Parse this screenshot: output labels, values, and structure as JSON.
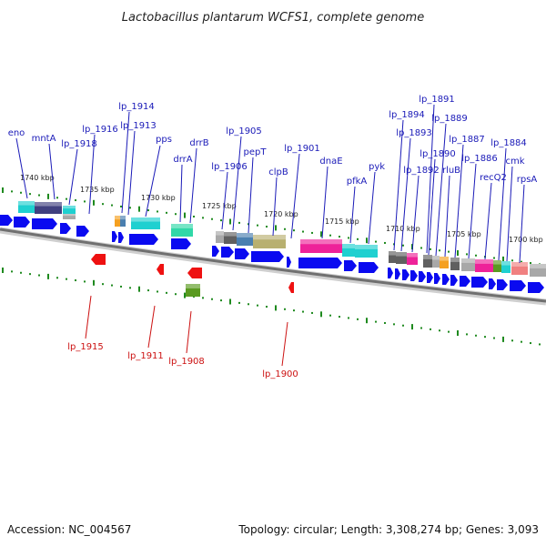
{
  "title": "Lactobacillus plantarum WCFS1, complete genome",
  "footer": {
    "accession": "Accession: NC_004567",
    "summary": "Topology: circular; Length: 3,308,274 bp; Genes: 3,093"
  },
  "scale_ticks": [
    "1740 kbp",
    "1735 kbp",
    "1730 kbp",
    "1725 kbp",
    "1720 kbp",
    "1715 kbp",
    "1710 kbp",
    "1705 kbp",
    "1700 kbp"
  ],
  "forward_labels": [
    "eno",
    "mntA",
    "lp_1918",
    "lp_1916",
    "lp_1914",
    "lp_1913",
    "pps",
    "drrA",
    "drrB",
    "lp_1906",
    "lp_1905",
    "pepT",
    "clpB",
    "lp_1901",
    "dnaE",
    "pfkA",
    "pyk",
    "lp_1894",
    "lp_1893",
    "lp_1892",
    "lp_1891",
    "lp_1890",
    "lp_1889",
    "rluB",
    "lp_1887",
    "lp_1886",
    "recQ2",
    "lp_1884",
    "cmk",
    "rpsA"
  ],
  "reverse_labels": [
    "lp_1915",
    "lp_1911",
    "lp_1908",
    "lp_1900"
  ],
  "colors": {
    "forward_arrow": "#0a0af0",
    "reverse_arrow": "#ee1111",
    "forward_label": "#1a1ab8",
    "reverse_label": "#cc1111",
    "tick_green": "#1f8a1f",
    "backbone": "#8a8a8a",
    "cyan": "#1fd0d0",
    "magenta": "#ee2299",
    "navy": "#404080",
    "olive": "#b8b070",
    "teal": "#30d8a8",
    "orange": "#f5a020",
    "grey": "#a8a8a8",
    "darkgrey": "#606060",
    "salmon": "#f08080",
    "steel": "#4a7fb0",
    "green": "#5a9a20"
  }
}
